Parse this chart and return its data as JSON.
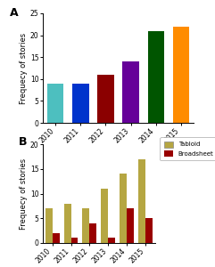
{
  "years": [
    "2010",
    "2011",
    "2012",
    "2013",
    "2014",
    "2015"
  ],
  "panel_a_values": [
    9,
    9,
    11,
    14,
    21,
    22
  ],
  "panel_a_colors": [
    "#4DBFBF",
    "#0033CC",
    "#8B0000",
    "#660099",
    "#005500",
    "#FF8C00"
  ],
  "panel_b_tabloid": [
    7,
    8,
    7,
    11,
    14,
    17
  ],
  "panel_b_broadsheet": [
    2,
    1,
    4,
    1,
    7,
    5
  ],
  "tabloid_color": "#B5A642",
  "broadsheet_color": "#990000",
  "ylabel": "Frequecy of stories",
  "ylim_a": [
    0,
    25
  ],
  "ylim_b": [
    0,
    20
  ],
  "yticks_a": [
    0,
    5,
    10,
    15,
    20,
    25
  ],
  "yticks_b": [
    0,
    5,
    10,
    15,
    20
  ],
  "bg_color": "#FFFFFF",
  "label_a": "A",
  "label_b": "B",
  "tick_fontsize": 5.5,
  "ylabel_fontsize": 6,
  "label_fontsize": 9
}
